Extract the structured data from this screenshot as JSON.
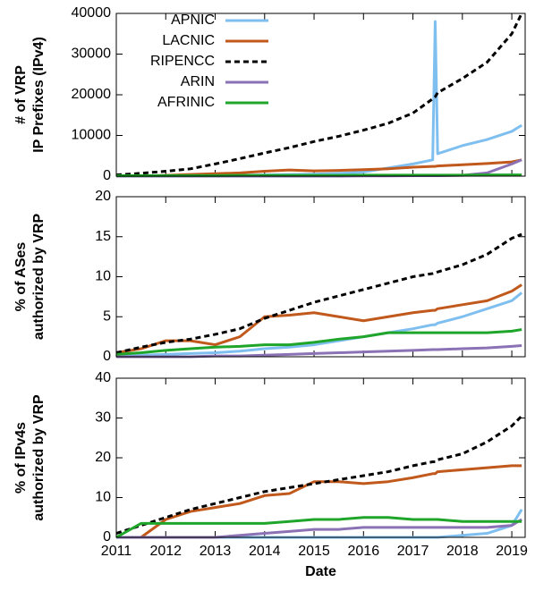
{
  "chart_data": [
    {
      "type": "line",
      "ylabel": [
        "# of VRP",
        "IP Prefixes (IPv4)"
      ],
      "x": [
        2011,
        2011.5,
        2012,
        2012.5,
        2013,
        2013.5,
        2014,
        2014.5,
        2015,
        2015.5,
        2016,
        2016.5,
        2017,
        2017.4,
        2017.45,
        2017.5,
        2018,
        2018.5,
        2019,
        2019.2
      ],
      "xlim": [
        2011,
        2019.27
      ],
      "ylim": [
        0,
        40000
      ],
      "yticks": [
        0,
        10000,
        20000,
        30000,
        40000
      ],
      "legend": "top-left",
      "series": [
        {
          "name": "APNIC",
          "color": "#7fbff0",
          "values": [
            0,
            0,
            50,
            100,
            150,
            200,
            300,
            400,
            500,
            700,
            1000,
            2000,
            3000,
            4000,
            38000,
            5500,
            7500,
            9000,
            11000,
            12500
          ]
        },
        {
          "name": "LACNIC",
          "color": "#c0591b",
          "values": [
            0,
            0,
            200,
            400,
            600,
            800,
            1200,
            1500,
            1300,
            1400,
            1600,
            1800,
            2200,
            2400,
            2400,
            2500,
            2800,
            3100,
            3500,
            4000
          ]
        },
        {
          "name": "RIPENCC",
          "color": "#000000",
          "dashed": true,
          "values": [
            300,
            700,
            1200,
            1800,
            3000,
            4300,
            5700,
            7000,
            8500,
            9800,
            11300,
            13000,
            15500,
            19000,
            19500,
            20500,
            24000,
            28000,
            35000,
            40000
          ]
        },
        {
          "name": "ARIN",
          "color": "#8a72b5",
          "values": [
            0,
            0,
            0,
            0,
            0,
            0,
            0,
            0,
            0,
            0,
            50,
            50,
            100,
            100,
            100,
            100,
            200,
            800,
            3000,
            4000
          ]
        },
        {
          "name": "AFRINIC",
          "color": "#1fa62a",
          "values": [
            100,
            100,
            150,
            150,
            150,
            200,
            200,
            200,
            200,
            200,
            250,
            250,
            250,
            250,
            250,
            250,
            250,
            300,
            300,
            300
          ]
        }
      ]
    },
    {
      "type": "line",
      "ylabel": [
        "% of ASes",
        "authorized by VRP"
      ],
      "x": [
        2011,
        2011.5,
        2012,
        2012.5,
        2013,
        2013.5,
        2014,
        2014.5,
        2015,
        2015.5,
        2016,
        2016.5,
        2017,
        2017.4,
        2017.45,
        2017.5,
        2018,
        2018.5,
        2019,
        2019.2
      ],
      "xlim": [
        2011,
        2019.27
      ],
      "ylim": [
        0,
        20
      ],
      "yticks": [
        0,
        5,
        10,
        15,
        20
      ],
      "series": [
        {
          "color": "#7fbff0",
          "values": [
            0,
            0.2,
            0.3,
            0.4,
            0.5,
            0.7,
            1,
            1.2,
            1.5,
            2,
            2.5,
            3,
            3.5,
            4,
            4,
            4.2,
            5,
            6,
            7,
            8
          ]
        },
        {
          "color": "#c0591b",
          "values": [
            0.5,
            1,
            2,
            2,
            1.5,
            2.5,
            5,
            5.2,
            5.5,
            5,
            4.5,
            5,
            5.5,
            5.8,
            5.8,
            6,
            6.5,
            7,
            8.2,
            9
          ]
        },
        {
          "color": "#000000",
          "dashed": true,
          "values": [
            0.5,
            1.2,
            1.8,
            2.2,
            2.8,
            3.5,
            4.8,
            5.8,
            6.8,
            7.6,
            8.4,
            9.2,
            10,
            10.4,
            10.5,
            10.6,
            11.5,
            12.8,
            14.8,
            15.3
          ]
        },
        {
          "color": "#8a72b5",
          "values": [
            0,
            0,
            0,
            0,
            0.1,
            0.1,
            0.2,
            0.3,
            0.4,
            0.5,
            0.6,
            0.7,
            0.8,
            0.9,
            0.9,
            0.9,
            1,
            1.1,
            1.3,
            1.4
          ]
        },
        {
          "color": "#1fa62a",
          "values": [
            0.3,
            0.5,
            0.8,
            1,
            1.2,
            1.3,
            1.5,
            1.5,
            1.8,
            2.2,
            2.5,
            3,
            3,
            3,
            3,
            3,
            3,
            3,
            3.2,
            3.4
          ]
        }
      ]
    },
    {
      "type": "line",
      "ylabel": [
        "% of IPv4s",
        "authorized by VRP"
      ],
      "xlabel": "Date",
      "x": [
        2011,
        2011.5,
        2012,
        2012.5,
        2013,
        2013.5,
        2014,
        2014.5,
        2015,
        2015.5,
        2016,
        2016.5,
        2017,
        2017.4,
        2017.45,
        2017.5,
        2018,
        2018.5,
        2019,
        2019.2
      ],
      "xlim": [
        2011,
        2019.27
      ],
      "xticks": [
        2011,
        2012,
        2013,
        2014,
        2015,
        2016,
        2017,
        2018,
        2019
      ],
      "ylim": [
        0,
        40
      ],
      "yticks": [
        0,
        10,
        20,
        30,
        40
      ],
      "series": [
        {
          "color": "#7fbff0",
          "values": [
            0,
            0,
            0,
            0,
            0,
            0,
            0,
            0,
            0,
            0,
            0,
            0,
            0,
            0,
            0,
            0,
            0.5,
            1,
            3,
            7
          ]
        },
        {
          "color": "#c0591b",
          "values": [
            0,
            0,
            4.5,
            6.5,
            7.5,
            8.5,
            10.5,
            11,
            14,
            14,
            13.5,
            14,
            15,
            16,
            16,
            16.5,
            17,
            17.5,
            18,
            18
          ]
        },
        {
          "color": "#000000",
          "dashed": true,
          "values": [
            1,
            3,
            5,
            7,
            8.5,
            10,
            11.5,
            12.5,
            13.5,
            14.5,
            15.5,
            16.5,
            18,
            19,
            19,
            19.5,
            21,
            24,
            28,
            30.5
          ]
        },
        {
          "color": "#8a72b5",
          "values": [
            0,
            0,
            0,
            0,
            0,
            0.5,
            1,
            1.5,
            2,
            2,
            2.5,
            2.5,
            2.5,
            2.5,
            2.5,
            2.5,
            2.5,
            2.5,
            3,
            4.5
          ]
        },
        {
          "color": "#1fa62a",
          "values": [
            0,
            3.5,
            3.5,
            3.5,
            3.5,
            3.5,
            3.5,
            4,
            4.5,
            4.5,
            5,
            5,
            4.5,
            4.5,
            4.5,
            4.5,
            4,
            4,
            4,
            4
          ]
        }
      ]
    }
  ]
}
